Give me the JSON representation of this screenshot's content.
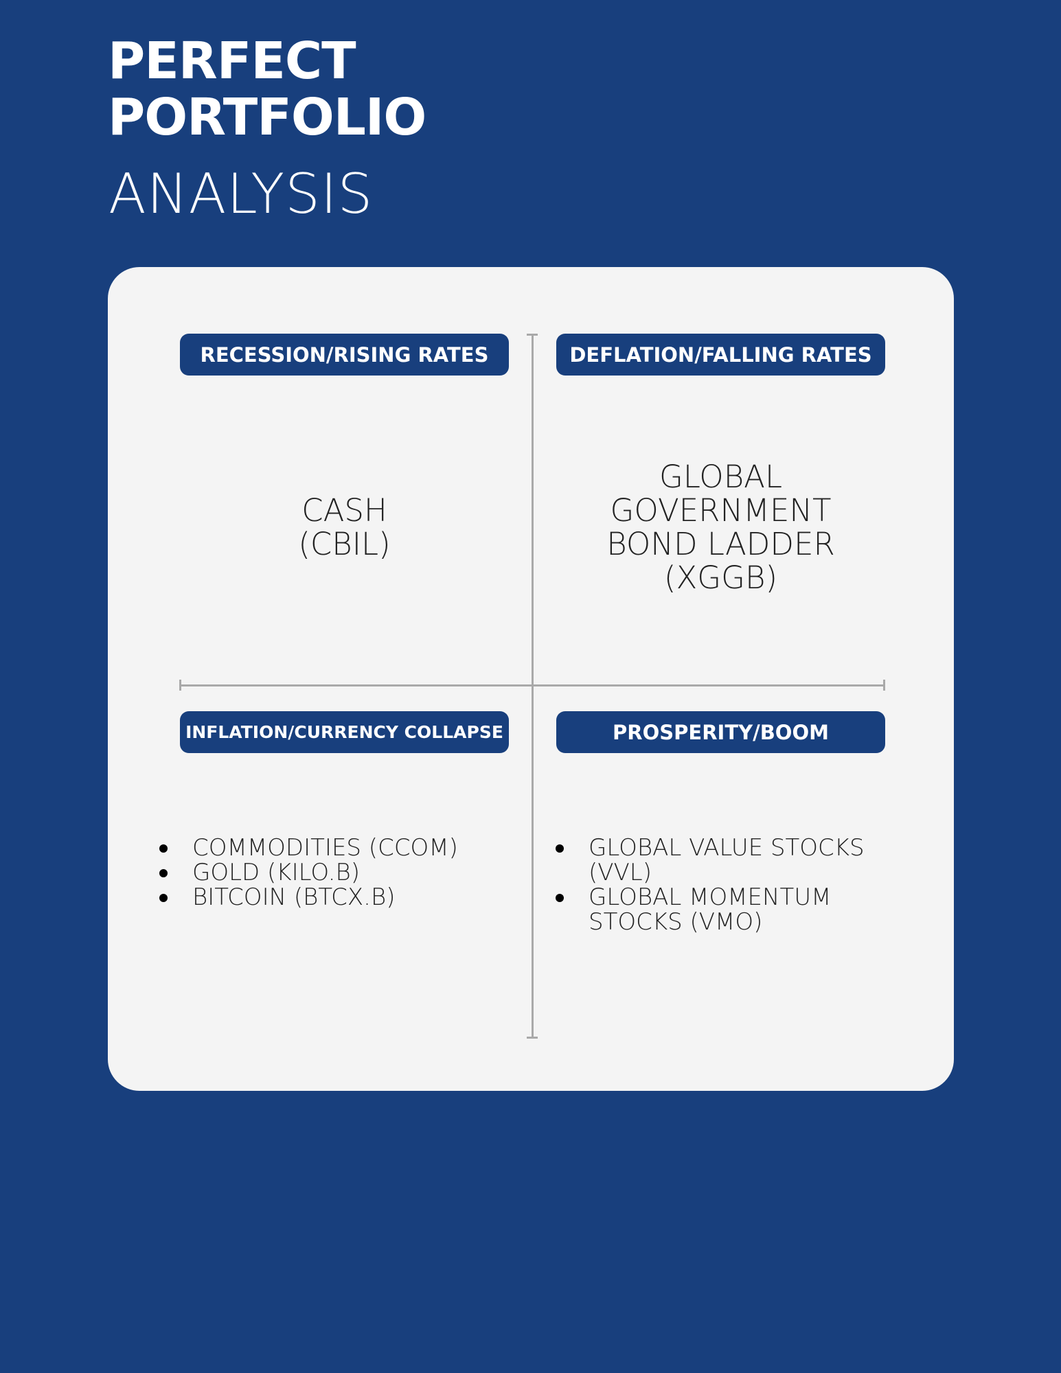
{
  "header": {
    "title_line1": "PERFECT",
    "title_line2": "PORTFOLIO",
    "subtitle": "ANALYSIS"
  },
  "quadrants": {
    "top_left": {
      "badge": "RECESSION/RISING RATES",
      "content_lines": [
        "CASH",
        "(CBIL)"
      ]
    },
    "top_right": {
      "badge": "DEFLATION/FALLING RATES",
      "content_lines": [
        "GLOBAL",
        "GOVERNMENT",
        "BOND LADDER",
        "(XGGB)"
      ]
    },
    "bottom_left": {
      "badge": "INFLATION/CURRENCY COLLAPSE",
      "items": [
        "COMMODITIES (CCOM)",
        "GOLD (KILO.B)",
        "BITCOIN (BTCX.B)"
      ]
    },
    "bottom_right": {
      "badge": "PROSPERITY/BOOM",
      "items": [
        "GLOBAL VALUE STOCKS (VVL)",
        "GLOBAL MOMENTUM STOCKS (VMO)"
      ]
    }
  },
  "colors": {
    "background": "#183f7d",
    "card": "#f4f4f4",
    "axis": "#a9a9a9",
    "badge": "#183f7d"
  }
}
